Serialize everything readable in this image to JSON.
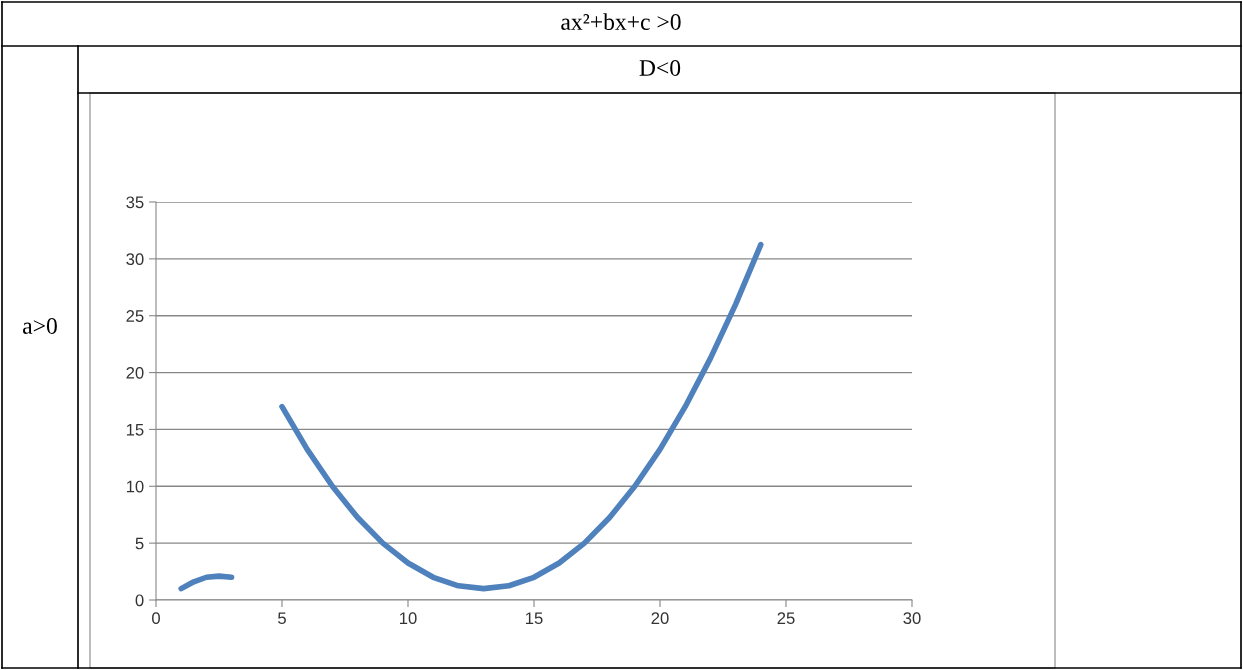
{
  "chart_data": {
    "type": "line",
    "title": "ax²+bx+c >0",
    "subtitle": "D<0",
    "annotations": [
      "a>0"
    ],
    "x": [
      1,
      1.5,
      2,
      2.5,
      3,
      4,
      5,
      6,
      7,
      8,
      9,
      10,
      11,
      12,
      13,
      14,
      15,
      16,
      17,
      18,
      19,
      20,
      21,
      22,
      23,
      24
    ],
    "series": [
      {
        "color": "#4f81bd",
        "values": [
          1,
          1.6,
          2,
          2.1,
          2,
          null,
          17,
          13.25,
          10,
          7.25,
          5,
          3.25,
          2,
          1.25,
          1,
          1.25,
          2,
          3.25,
          5,
          7.25,
          10,
          13.25,
          17,
          21.25,
          26,
          31.25
        ]
      }
    ],
    "xlim": [
      0,
      30
    ],
    "xticks": [
      0,
      5,
      10,
      15,
      20,
      25,
      30
    ],
    "ylim": [
      0,
      35
    ],
    "yticks": [
      0,
      5,
      10,
      15,
      20,
      25,
      30,
      35
    ],
    "grid": "y",
    "marker": "none",
    "line_style": "solid",
    "legend": false
  }
}
